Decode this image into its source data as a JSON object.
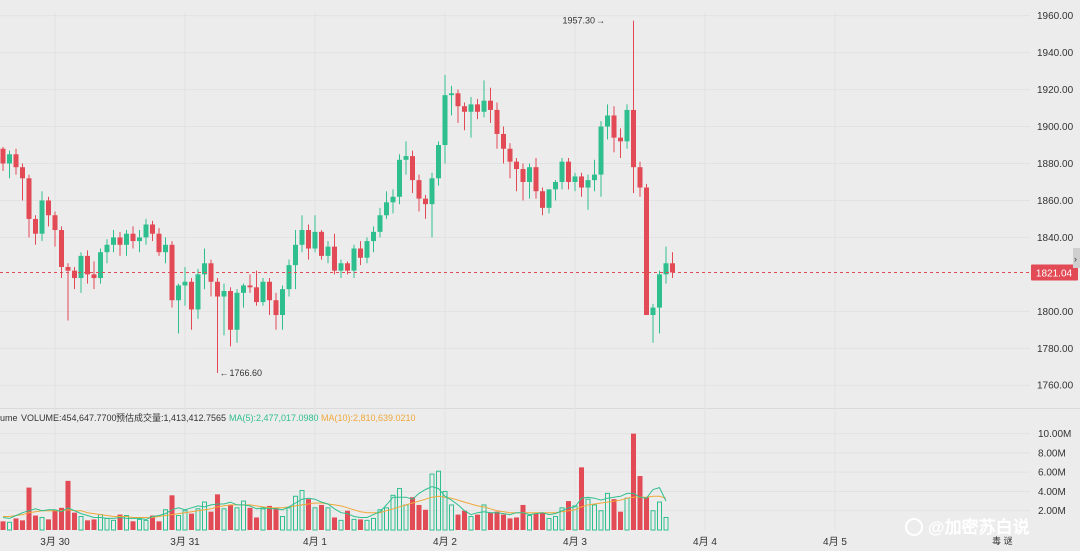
{
  "chart_data": {
    "type": "candlestick",
    "title": "",
    "colors": {
      "up": "#2fbf8f",
      "down": "#e24a55",
      "price_line": "#e24a55",
      "grid": "#e2e2e2",
      "ma5": "#2fbf8f",
      "ma10": "#f0a83a"
    },
    "price_axis": {
      "ticks": [
        1960,
        1940,
        1920,
        1900,
        1880,
        1860,
        1840,
        1800,
        1780,
        1760
      ],
      "tick_labels": [
        "1960.00",
        "1940.00",
        "1920.00",
        "1900.00",
        "1880.00",
        "1860.00",
        "1840.00",
        "1800.00",
        "1780.00",
        "1760.00"
      ],
      "range": [
        1752,
        1962
      ]
    },
    "volume_axis": {
      "ticks": [
        10,
        8,
        6,
        4,
        2
      ],
      "tick_labels": [
        "10.00M",
        "8.00M",
        "6.00M",
        "4.00M",
        "2.00M"
      ],
      "range": [
        0,
        11
      ]
    },
    "x_axis": {
      "labels": [
        "3月 30",
        "3月 31",
        "4月 1",
        "4月 2",
        "4月 3",
        "4月 4",
        "4月 5"
      ],
      "label_index": [
        8,
        28,
        48,
        68,
        88,
        108,
        128
      ]
    },
    "current_price": {
      "value": 1821.04,
      "label": "1821.04"
    },
    "annotations": {
      "high_label": "1957.30",
      "high_value": 1957.3,
      "high_index": 92,
      "low_label": "1766.60",
      "low_value": 1766.6,
      "low_index": 33
    },
    "volume_legend": {
      "prefix": "ume",
      "volume": "VOLUME:454,647.7700",
      "estimated": "预估成交量:1,413,412.7565",
      "ma5": "MA(5):2,477,017.0980",
      "ma10": "MA(10):2,810,639.0210"
    },
    "candles_ohlc": [
      [
        1888,
        1889,
        1876,
        1880
      ],
      [
        1880,
        1887,
        1872,
        1885
      ],
      [
        1885,
        1888,
        1874,
        1878
      ],
      [
        1878,
        1880,
        1860,
        1872
      ],
      [
        1872,
        1874,
        1840,
        1850
      ],
      [
        1850,
        1852,
        1836,
        1842
      ],
      [
        1842,
        1865,
        1838,
        1860
      ],
      [
        1860,
        1862,
        1846,
        1852
      ],
      [
        1852,
        1854,
        1835,
        1844
      ],
      [
        1844,
        1846,
        1818,
        1824
      ],
      [
        1824,
        1826,
        1795,
        1822
      ],
      [
        1822,
        1824,
        1812,
        1818
      ],
      [
        1818,
        1832,
        1810,
        1830
      ],
      [
        1830,
        1833,
        1815,
        1820
      ],
      [
        1820,
        1827,
        1812,
        1818
      ],
      [
        1818,
        1834,
        1815,
        1832
      ],
      [
        1832,
        1839,
        1826,
        1836
      ],
      [
        1836,
        1844,
        1832,
        1840
      ],
      [
        1840,
        1843,
        1830,
        1836
      ],
      [
        1836,
        1844,
        1830,
        1842
      ],
      [
        1842,
        1846,
        1834,
        1838
      ],
      [
        1838,
        1844,
        1832,
        1840
      ],
      [
        1840,
        1850,
        1836,
        1847
      ],
      [
        1847,
        1849,
        1838,
        1842
      ],
      [
        1842,
        1845,
        1830,
        1832
      ],
      [
        1832,
        1840,
        1826,
        1836
      ],
      [
        1836,
        1838,
        1802,
        1806
      ],
      [
        1806,
        1815,
        1788,
        1814
      ],
      [
        1814,
        1824,
        1803,
        1816
      ],
      [
        1816,
        1818,
        1790,
        1801
      ],
      [
        1801,
        1823,
        1796,
        1820
      ],
      [
        1820,
        1834,
        1812,
        1826
      ],
      [
        1826,
        1828,
        1808,
        1816
      ],
      [
        1816,
        1818,
        1766.6,
        1808
      ],
      [
        1808,
        1815,
        1787,
        1811
      ],
      [
        1811,
        1813,
        1781,
        1790
      ],
      [
        1790,
        1812,
        1783,
        1810
      ],
      [
        1810,
        1815,
        1802,
        1814
      ],
      [
        1814,
        1820,
        1810,
        1813
      ],
      [
        1813,
        1822,
        1803,
        1805
      ],
      [
        1805,
        1818,
        1803,
        1816
      ],
      [
        1816,
        1818,
        1798,
        1806
      ],
      [
        1806,
        1810,
        1790,
        1798
      ],
      [
        1798,
        1814,
        1790,
        1812
      ],
      [
        1812,
        1828,
        1808,
        1825
      ],
      [
        1825,
        1844,
        1812,
        1836
      ],
      [
        1836,
        1852,
        1832,
        1844
      ],
      [
        1844,
        1847,
        1828,
        1834
      ],
      [
        1834,
        1852,
        1832,
        1843
      ],
      [
        1843,
        1844,
        1828,
        1830
      ],
      [
        1830,
        1838,
        1826,
        1835
      ],
      [
        1835,
        1842,
        1820,
        1822
      ],
      [
        1822,
        1828,
        1818,
        1826
      ],
      [
        1826,
        1827,
        1820,
        1822
      ],
      [
        1822,
        1836,
        1818,
        1834
      ],
      [
        1834,
        1838,
        1825,
        1829
      ],
      [
        1829,
        1840,
        1826,
        1838
      ],
      [
        1838,
        1846,
        1832,
        1843
      ],
      [
        1843,
        1856,
        1840,
        1852
      ],
      [
        1852,
        1865,
        1850,
        1859
      ],
      [
        1859,
        1866,
        1853,
        1862
      ],
      [
        1862,
        1885,
        1858,
        1882
      ],
      [
        1882,
        1892,
        1874,
        1884
      ],
      [
        1884,
        1887,
        1864,
        1871
      ],
      [
        1871,
        1874,
        1854,
        1861
      ],
      [
        1861,
        1863,
        1850,
        1858
      ],
      [
        1858,
        1875,
        1840,
        1872
      ],
      [
        1872,
        1892,
        1868,
        1890
      ],
      [
        1890,
        1928,
        1880,
        1917
      ],
      [
        1917,
        1922,
        1906,
        1918
      ],
      [
        1918,
        1920,
        1902,
        1911
      ],
      [
        1911,
        1913,
        1898,
        1908
      ],
      [
        1908,
        1916,
        1894,
        1912
      ],
      [
        1912,
        1915,
        1904,
        1908
      ],
      [
        1908,
        1925,
        1905,
        1914
      ],
      [
        1914,
        1921,
        1902,
        1909
      ],
      [
        1909,
        1913,
        1888,
        1896
      ],
      [
        1896,
        1900,
        1880,
        1888
      ],
      [
        1888,
        1891,
        1872,
        1881
      ],
      [
        1881,
        1883,
        1865,
        1877
      ],
      [
        1877,
        1880,
        1860,
        1870
      ],
      [
        1870,
        1880,
        1861,
        1878
      ],
      [
        1878,
        1883,
        1861,
        1865
      ],
      [
        1865,
        1867,
        1852,
        1856
      ],
      [
        1856,
        1866,
        1853,
        1866
      ],
      [
        1866,
        1871,
        1860,
        1870
      ],
      [
        1870,
        1883,
        1866,
        1881
      ],
      [
        1881,
        1883,
        1866,
        1870
      ],
      [
        1870,
        1875,
        1865,
        1873
      ],
      [
        1873,
        1875,
        1862,
        1867
      ],
      [
        1867,
        1874,
        1855,
        1871
      ],
      [
        1871,
        1882,
        1865,
        1874
      ],
      [
        1874,
        1903,
        1862,
        1900
      ],
      [
        1900,
        1912,
        1893,
        1906
      ],
      [
        1906,
        1911,
        1886,
        1894
      ],
      [
        1894,
        1899,
        1883,
        1892
      ],
      [
        1892,
        1912,
        1888,
        1909
      ],
      [
        1909,
        1957.3,
        1864,
        1878
      ],
      [
        1878,
        1881,
        1862,
        1867
      ],
      [
        1867,
        1869,
        1799,
        1798
      ],
      [
        1798,
        1804,
        1783,
        1802
      ],
      [
        1802,
        1822,
        1788,
        1820
      ],
      [
        1820,
        1835,
        1815,
        1826
      ],
      [
        1826,
        1832,
        1818,
        1821.04
      ]
    ],
    "volumes": [
      0.9,
      0.8,
      1.2,
      1.0,
      4.4,
      1.5,
      1.3,
      1.1,
      2.1,
      2.3,
      5.1,
      1.8,
      1.4,
      1.0,
      1.1,
      1.6,
      1.2,
      1.0,
      1.6,
      1.5,
      0.9,
      1.1,
      1.0,
      1.5,
      0.9,
      2.1,
      3.6,
      1.5,
      2.0,
      1.7,
      2.2,
      2.9,
      1.9,
      3.7,
      2.2,
      2.6,
      2.3,
      3.0,
      2.3,
      1.3,
      2.2,
      2.5,
      2.3,
      1.4,
      2.3,
      3.5,
      4.1,
      3.2,
      2.3,
      2.6,
      2.3,
      1.3,
      1.0,
      2.0,
      1.1,
      1.1,
      1.0,
      1.2,
      2.1,
      2.3,
      3.6,
      4.3,
      2.6,
      3.4,
      2.6,
      2.1,
      5.8,
      6.1,
      4.0,
      2.6,
      1.6,
      2.0,
      1.4,
      1.6,
      2.6,
      1.8,
      1.9,
      1.6,
      1.2,
      1.3,
      2.6,
      1.5,
      1.7,
      1.8,
      1.2,
      1.4,
      2.3,
      3.0,
      2.5,
      6.5,
      3.2,
      2.6,
      2.0,
      3.8,
      3.2,
      1.9,
      3.3,
      10.0,
      5.6,
      3.4,
      2.0,
      2.9,
      1.3
    ],
    "ma5": [
      1.3,
      1.2,
      1.5,
      1.8,
      2.0,
      2.2,
      2.0,
      2.1,
      2.1,
      1.9,
      2.3,
      2.0,
      1.7,
      1.5,
      1.3,
      1.3,
      1.2,
      1.2,
      1.3,
      1.2,
      1.2,
      1.2,
      1.1,
      1.4,
      1.5,
      1.7,
      2.1,
      2.3,
      2.1,
      2.3,
      2.5,
      2.4,
      2.6,
      2.7,
      2.7,
      2.9,
      2.6,
      2.6,
      2.5,
      2.2,
      2.3,
      2.2,
      2.2,
      2.1,
      2.4,
      2.8,
      3.2,
      3.3,
      3.2,
      2.9,
      2.7,
      2.2,
      1.8,
      1.7,
      1.4,
      1.3,
      1.3,
      1.6,
      1.9,
      2.6,
      3.4,
      3.4,
      3.4,
      3.2,
      3.8,
      4.2,
      4.5,
      4.3,
      3.5,
      3.1,
      2.6,
      2.0,
      1.6,
      1.8,
      1.9,
      1.8,
      1.8,
      1.7,
      1.6,
      1.8,
      1.8,
      1.6,
      1.7,
      1.8,
      1.6,
      1.7,
      2.0,
      2.3,
      2.4,
      3.3,
      3.4,
      3.3,
      3.1,
      3.3,
      3.4,
      3.5,
      3.8,
      3.8,
      3.4,
      3.3,
      4.2,
      4.4,
      3.0
    ],
    "ma10": [
      1.4,
      1.4,
      1.5,
      1.6,
      1.8,
      1.9,
      2.0,
      2.0,
      2.0,
      2.0,
      2.1,
      2.0,
      2.0,
      1.8,
      1.7,
      1.6,
      1.5,
      1.4,
      1.4,
      1.4,
      1.3,
      1.3,
      1.3,
      1.3,
      1.4,
      1.5,
      1.6,
      1.7,
      1.8,
      1.9,
      2.0,
      2.1,
      2.2,
      2.4,
      2.5,
      2.6,
      2.6,
      2.6,
      2.6,
      2.5,
      2.4,
      2.3,
      2.3,
      2.3,
      2.4,
      2.5,
      2.6,
      2.7,
      2.8,
      2.8,
      2.7,
      2.6,
      2.5,
      2.3,
      2.1,
      1.9,
      1.8,
      1.8,
      1.8,
      2.0,
      2.2,
      2.4,
      2.6,
      2.8,
      3.0,
      3.2,
      3.4,
      3.5,
      3.4,
      3.3,
      3.1,
      2.9,
      2.7,
      2.5,
      2.4,
      2.2,
      2.0,
      1.9,
      1.8,
      1.8,
      1.8,
      1.8,
      1.8,
      1.8,
      1.8,
      1.8,
      1.9,
      2.0,
      2.1,
      2.4,
      2.6,
      2.7,
      2.8,
      2.9,
      3.0,
      3.1,
      3.3,
      3.4,
      3.4,
      3.4,
      3.5,
      3.5,
      3.3
    ]
  },
  "ui": {
    "collapse_arrow": "›",
    "watermark": "@加密苏白说",
    "corner_text": "毒 谜",
    "icons": {
      "logo": "weibo-logo-icon",
      "collapse": "chevron-right-icon"
    }
  }
}
